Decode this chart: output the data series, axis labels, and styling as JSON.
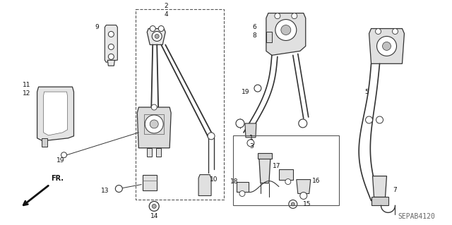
{
  "background_color": "#ffffff",
  "fig_width": 6.4,
  "fig_height": 3.19,
  "dpi": 100,
  "line_color": "#333333",
  "label_color": "#111111",
  "label_fontsize": 6.5,
  "watermark_text": "SEPAB4120",
  "watermark_color": "#666666",
  "watermark_fontsize": 7
}
